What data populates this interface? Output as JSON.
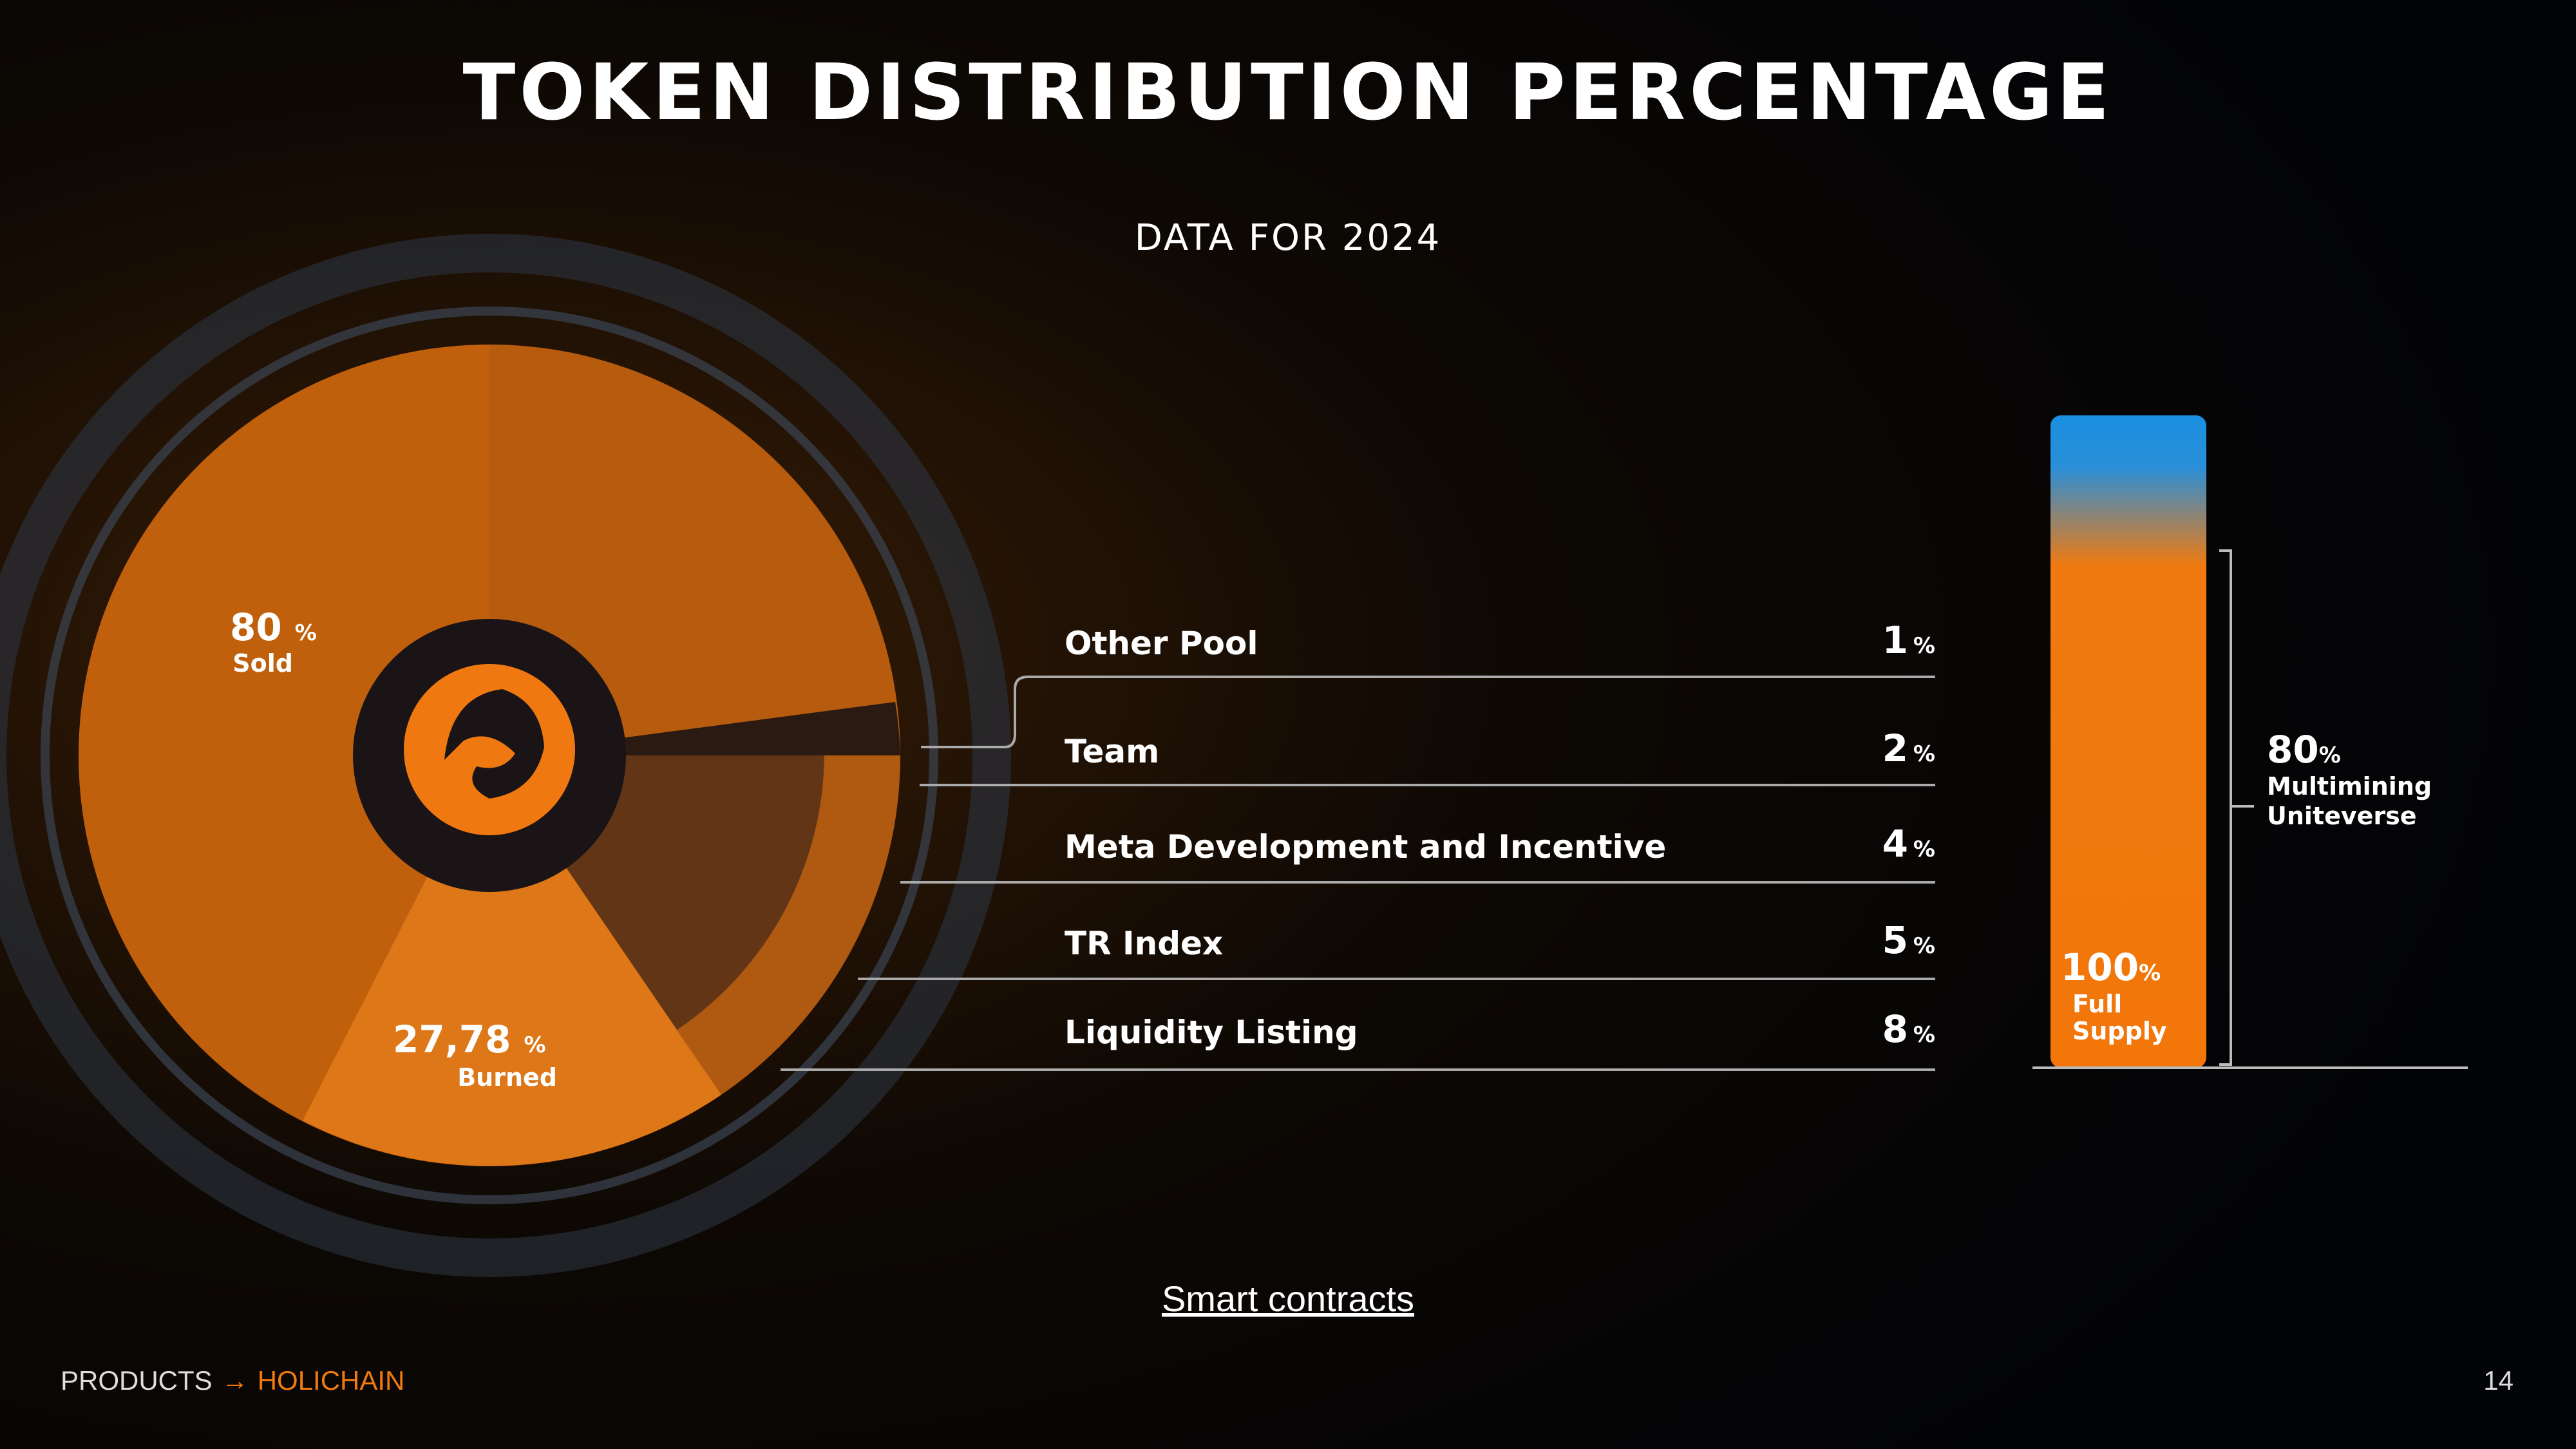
{
  "header": {
    "title": "TOKEN DISTRIBUTION PERCENTAGE",
    "subtitle": "DATA FOR 2024"
  },
  "donut": {
    "sold": {
      "value": "80",
      "unit": "%",
      "label": "Sold"
    },
    "burned": {
      "value": "27,78",
      "unit": "%",
      "label": "Burned"
    }
  },
  "list": {
    "rows": [
      {
        "label": "Other Pool",
        "value": "1",
        "unit": "%"
      },
      {
        "label": "Team",
        "value": "2",
        "unit": "%"
      },
      {
        "label": "Meta Development and Incentive",
        "value": "4",
        "unit": "%"
      },
      {
        "label": "TR Index",
        "value": "5",
        "unit": "%"
      },
      {
        "label": "Liquidity Listing",
        "value": "8",
        "unit": "%"
      }
    ]
  },
  "bar": {
    "total": {
      "value": "100",
      "unit": "%",
      "line1": "Full",
      "line2": "Supply"
    },
    "bracket": {
      "value": "80",
      "unit": "%",
      "line1": "Multimining",
      "line2": "Uniteverse"
    }
  },
  "link": "Smart contracts",
  "footer": {
    "section": "PRODUCTS",
    "arrow": "→",
    "product": "HOLICHAIN",
    "page": "14"
  }
}
